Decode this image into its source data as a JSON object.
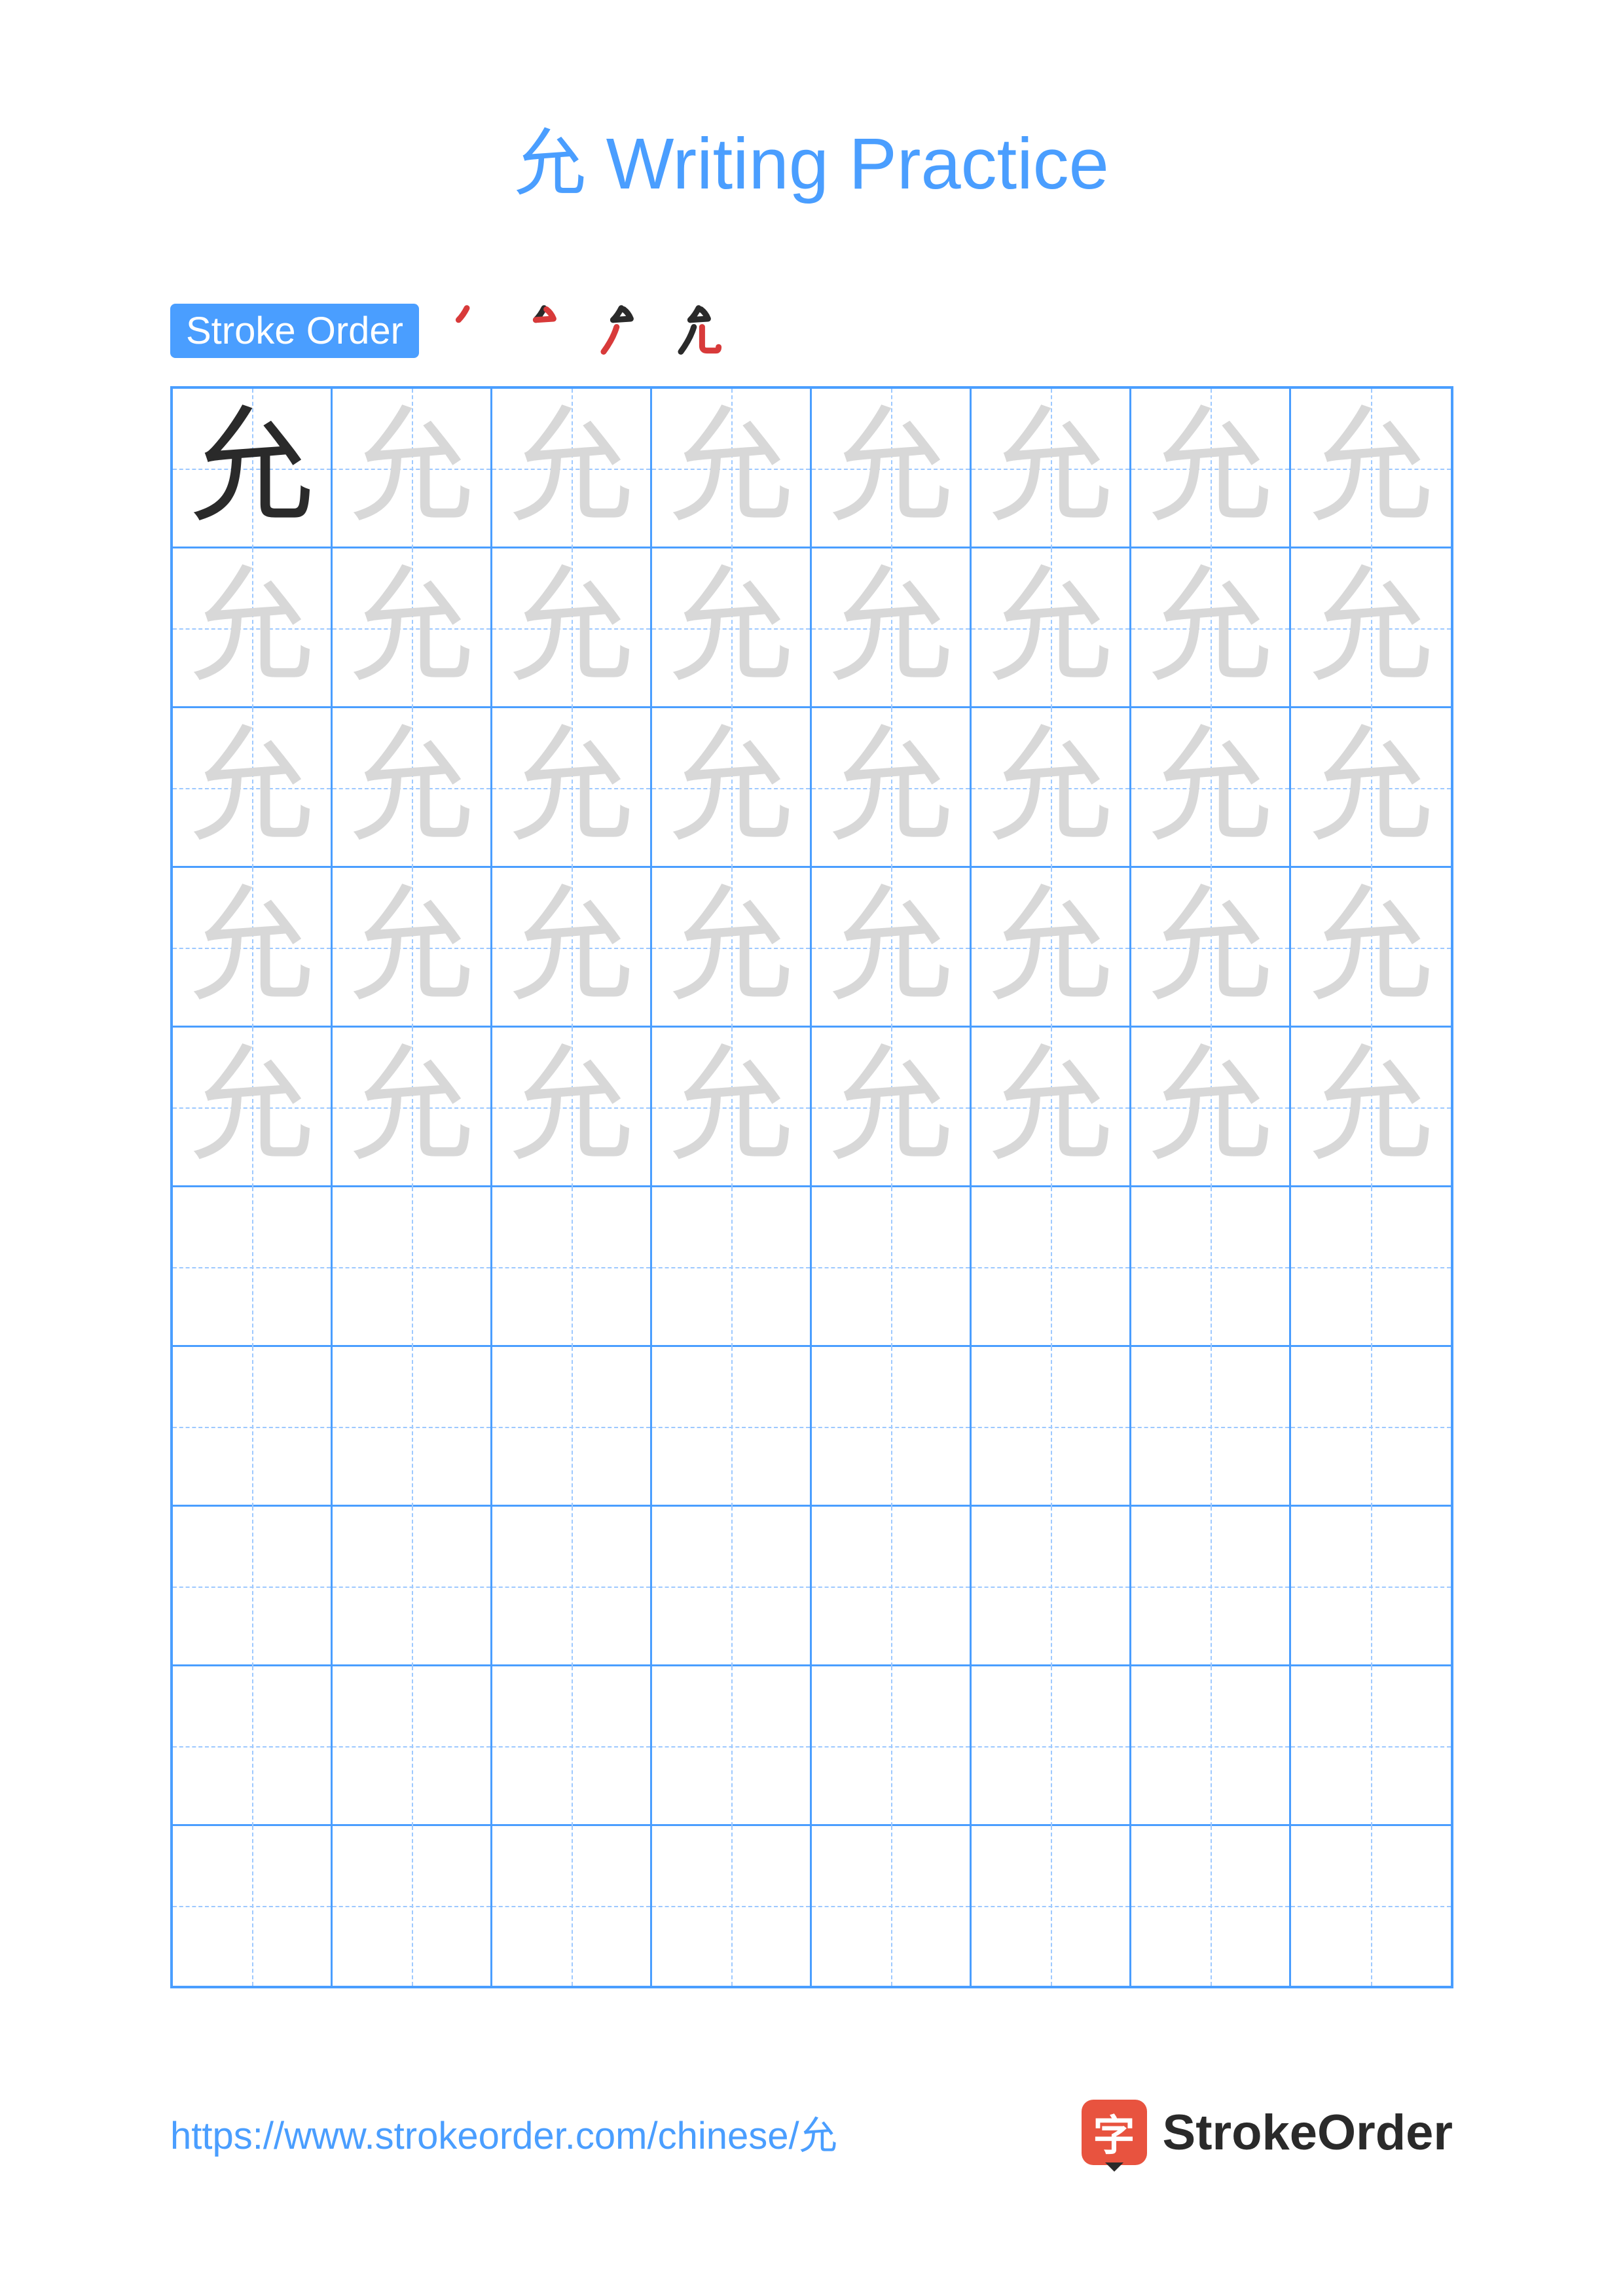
{
  "title": "允 Writing Practice",
  "title_color": "#4a9eff",
  "character": "允",
  "stroke_order_label": "Stroke Order",
  "badge_bg": "#4a9eff",
  "stroke_count": 4,
  "stroke_current_color": "#d83a3a",
  "stroke_done_color": "#2a2a2a",
  "grid": {
    "rows": 10,
    "cols": 8,
    "trace_rows": 5,
    "border_color": "#4a9eff",
    "guide_color": "#9ec9ff",
    "char_solid_color": "#2a2a2a",
    "char_trace_color": "#d8d8d8"
  },
  "footer": {
    "url": "https://www.strokeorder.com/chinese/允",
    "url_color": "#4a9eff",
    "logo_badge_bg": "#e8533f",
    "logo_badge_char": "字",
    "logo_text": "StrokeOrder",
    "logo_text_color": "#2a2a2a"
  }
}
